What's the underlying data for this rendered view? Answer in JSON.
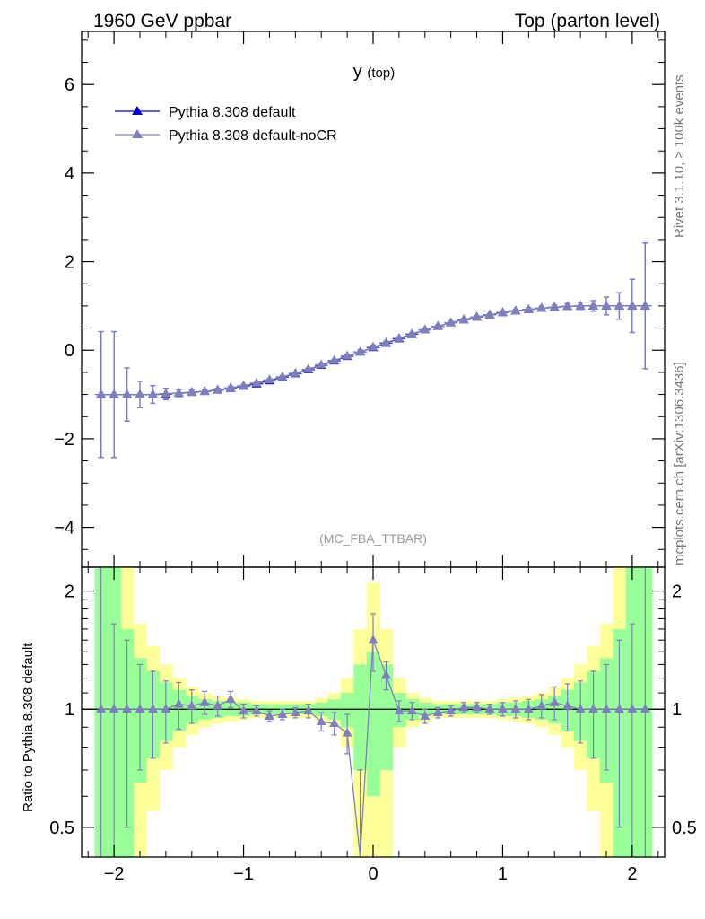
{
  "header": {
    "left_title": "1960 GeV ppbar",
    "right_title": "Top (parton level)"
  },
  "side": {
    "rivet": "Rivet 3.1.10, ≥ 100k events",
    "mcplots": "mcplots.cern.ch [arXiv:1306.3436]"
  },
  "plot": {
    "label_main": "y",
    "label_sub": "(top)",
    "watermark": "(MC_FBA_TTBAR)"
  },
  "colors": {
    "default": "#0000cc",
    "noCR": "#7f7fbf",
    "band_green": "#99ff99",
    "band_yellow": "#ffff99"
  },
  "chart_data": [
    {
      "type": "line",
      "xlim": [
        -2.25,
        2.25
      ],
      "ylim": [
        -4.9,
        7.2
      ],
      "yticks": [
        -4,
        -2,
        0,
        2,
        4,
        6
      ],
      "ytick_labels": [
        "−4",
        "−2",
        "0",
        "2",
        "4",
        "6"
      ],
      "x": [
        -2.1,
        -2.0,
        -1.9,
        -1.8,
        -1.7,
        -1.6,
        -1.5,
        -1.4,
        -1.3,
        -1.2,
        -1.1,
        -1.0,
        -0.9,
        -0.8,
        -0.7,
        -0.6,
        -0.5,
        -0.4,
        -0.3,
        -0.2,
        -0.1,
        0.0,
        0.1,
        0.2,
        0.3,
        0.4,
        0.5,
        0.6,
        0.7,
        0.8,
        0.9,
        1.0,
        1.1,
        1.2,
        1.3,
        1.4,
        1.5,
        1.6,
        1.7,
        1.8,
        1.9,
        2.0,
        2.1
      ],
      "series": [
        {
          "name": "Pythia 8.308 default",
          "values": [
            -1.0,
            -1.0,
            -1.0,
            -1.0,
            -1.0,
            -0.99,
            -0.97,
            -0.95,
            -0.93,
            -0.9,
            -0.86,
            -0.81,
            -0.76,
            -0.69,
            -0.61,
            -0.53,
            -0.44,
            -0.34,
            -0.24,
            -0.14,
            -0.04,
            0.06,
            0.16,
            0.26,
            0.36,
            0.46,
            0.54,
            0.62,
            0.69,
            0.75,
            0.8,
            0.85,
            0.89,
            0.92,
            0.95,
            0.97,
            0.99,
            1.0,
            1.0,
            1.0,
            1.0,
            1.0,
            1.0
          ],
          "errors": [
            1.42,
            1.42,
            0.6,
            0.3,
            0.2,
            0.12,
            0.08,
            0.06,
            0.05,
            0.04,
            0.04,
            0.03,
            0.03,
            0.03,
            0.03,
            0.03,
            0.03,
            0.03,
            0.03,
            0.04,
            0.05,
            0.05,
            0.04,
            0.03,
            0.03,
            0.03,
            0.03,
            0.03,
            0.03,
            0.03,
            0.03,
            0.03,
            0.03,
            0.04,
            0.04,
            0.05,
            0.06,
            0.08,
            0.12,
            0.2,
            0.3,
            0.6,
            1.42
          ]
        },
        {
          "name": "Pythia 8.308 default-noCR",
          "values": [
            -1.0,
            -1.0,
            -1.0,
            -1.0,
            -1.0,
            -0.98,
            -0.97,
            -0.95,
            -0.93,
            -0.9,
            -0.85,
            -0.8,
            -0.74,
            -0.67,
            -0.6,
            -0.52,
            -0.43,
            -0.33,
            -0.23,
            -0.13,
            -0.04,
            0.07,
            0.17,
            0.27,
            0.37,
            0.46,
            0.54,
            0.62,
            0.69,
            0.75,
            0.8,
            0.85,
            0.89,
            0.92,
            0.95,
            0.97,
            0.99,
            1.0,
            1.0,
            1.0,
            1.0,
            1.0,
            1.0
          ],
          "errors": [
            1.42,
            1.42,
            0.6,
            0.3,
            0.2,
            0.12,
            0.08,
            0.06,
            0.05,
            0.04,
            0.04,
            0.03,
            0.03,
            0.03,
            0.03,
            0.03,
            0.03,
            0.03,
            0.03,
            0.04,
            0.05,
            0.05,
            0.04,
            0.03,
            0.03,
            0.03,
            0.03,
            0.03,
            0.03,
            0.03,
            0.03,
            0.03,
            0.03,
            0.04,
            0.04,
            0.05,
            0.06,
            0.08,
            0.12,
            0.2,
            0.3,
            0.6,
            1.42
          ]
        }
      ]
    },
    {
      "type": "line",
      "ylabel": "Ratio to Pythia 8.308 default",
      "xlim": [
        -2.25,
        2.25
      ],
      "ylim": [
        0.42,
        2.3
      ],
      "ylog": true,
      "yticks": [
        0.5,
        1,
        2
      ],
      "ytick_labels": [
        "0.5",
        "1",
        "2"
      ],
      "xticks": [
        -2,
        -1,
        0,
        1,
        2
      ],
      "xtick_labels": [
        "−2",
        "−1",
        "0",
        "1",
        "2"
      ],
      "x": [
        -2.1,
        -2.0,
        -1.9,
        -1.8,
        -1.7,
        -1.6,
        -1.5,
        -1.4,
        -1.3,
        -1.2,
        -1.1,
        -1.0,
        -0.9,
        -0.8,
        -0.7,
        -0.6,
        -0.5,
        -0.4,
        -0.3,
        -0.2,
        -0.1,
        0.0,
        0.1,
        0.2,
        0.3,
        0.4,
        0.5,
        0.6,
        0.7,
        0.8,
        0.9,
        1.0,
        1.1,
        1.2,
        1.3,
        1.4,
        1.5,
        1.6,
        1.7,
        1.8,
        1.9,
        2.0,
        2.1
      ],
      "band_green_half": [
        2.0,
        1.6,
        0.6,
        0.35,
        0.25,
        0.17,
        0.12,
        0.08,
        0.06,
        0.05,
        0.04,
        0.04,
        0.03,
        0.03,
        0.03,
        0.03,
        0.03,
        0.04,
        0.06,
        0.1,
        0.3,
        0.4,
        0.3,
        0.1,
        0.06,
        0.04,
        0.03,
        0.03,
        0.03,
        0.03,
        0.03,
        0.04,
        0.04,
        0.05,
        0.06,
        0.08,
        0.12,
        0.17,
        0.25,
        0.35,
        0.6,
        1.6,
        2.0
      ],
      "band_yellow_half": [
        2.0,
        2.0,
        1.4,
        0.65,
        0.45,
        0.3,
        0.2,
        0.14,
        0.1,
        0.08,
        0.07,
        0.06,
        0.05,
        0.05,
        0.05,
        0.05,
        0.05,
        0.07,
        0.1,
        0.2,
        0.6,
        1.1,
        0.6,
        0.2,
        0.1,
        0.07,
        0.05,
        0.05,
        0.05,
        0.05,
        0.05,
        0.06,
        0.07,
        0.08,
        0.1,
        0.14,
        0.2,
        0.3,
        0.45,
        0.65,
        1.4,
        2.0,
        2.0
      ],
      "series": [
        {
          "name": "Pythia 8.308 default",
          "values": [
            1,
            1,
            1,
            1,
            1,
            1,
            1,
            1,
            1,
            1,
            1,
            1,
            1,
            1,
            1,
            1,
            1,
            1,
            1,
            1,
            1,
            1,
            1,
            1,
            1,
            1,
            1,
            1,
            1,
            1,
            1,
            1,
            1,
            1,
            1,
            1,
            1,
            1,
            1,
            1,
            1,
            1,
            1
          ]
        },
        {
          "name": "Pythia 8.308 default-noCR",
          "values": [
            1.0,
            1.0,
            1.0,
            1.0,
            1.0,
            1.0,
            1.03,
            1.02,
            1.04,
            1.02,
            1.06,
            0.99,
            0.99,
            0.96,
            0.97,
            0.98,
            0.99,
            0.93,
            0.92,
            0.87,
            0.3,
            1.5,
            1.22,
            0.99,
            0.99,
            0.96,
            0.98,
            0.99,
            1.01,
            1.01,
            1.0,
            1.0,
            1.0,
            1.0,
            1.02,
            1.04,
            1.02,
            1.0,
            1.0,
            1.0,
            1.0,
            1.0,
            1.0
          ],
          "errors": [
            1.6,
            0.65,
            0.5,
            0.3,
            0.25,
            0.18,
            0.14,
            0.1,
            0.07,
            0.06,
            0.05,
            0.04,
            0.03,
            0.03,
            0.03,
            0.03,
            0.04,
            0.05,
            0.06,
            0.1,
            0.4,
            0.25,
            0.1,
            0.06,
            0.05,
            0.04,
            0.03,
            0.03,
            0.03,
            0.03,
            0.03,
            0.04,
            0.05,
            0.06,
            0.07,
            0.1,
            0.14,
            0.18,
            0.25,
            0.3,
            0.5,
            0.65,
            1.6
          ]
        }
      ]
    }
  ]
}
